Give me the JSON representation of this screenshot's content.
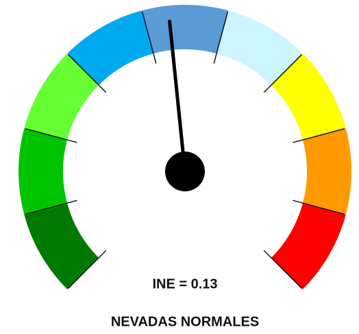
{
  "chart_data": {
    "type": "gauge",
    "value": 0.13,
    "value_label": "INE = 0.13",
    "subtitle": "NEVADAS NORMALES",
    "lim": [
      3,
      -3
    ],
    "bands": [
      "#007a00",
      "#00c400",
      "#66ff33",
      "#00aaee",
      "#5b9bd5",
      "#ccf5ff",
      "#ffff00",
      "#ff9900",
      "#ff0000"
    ]
  }
}
